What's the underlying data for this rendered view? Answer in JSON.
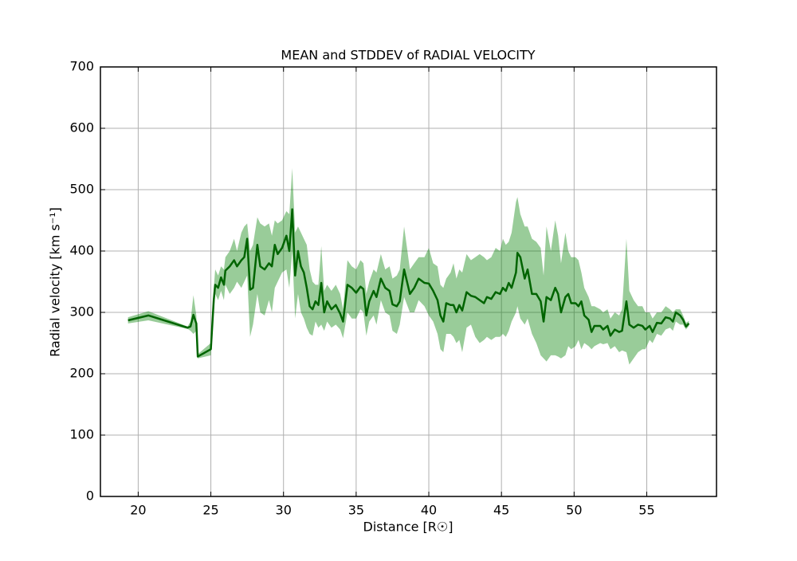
{
  "chart_data": {
    "type": "line-band",
    "title": "MEAN and STDDEV of RADIAL VELOCITY",
    "xlabel": "Distance [R☉]",
    "ylabel": "Radial velocity [km s⁻¹]",
    "x": [
      19.3,
      20.7,
      23.4,
      23.6,
      23.8,
      24.0,
      24.1,
      25.0,
      25.2,
      25.3,
      25.5,
      25.7,
      25.9,
      26.0,
      26.3,
      26.6,
      26.8,
      27.1,
      27.3,
      27.5,
      27.7,
      27.9,
      28.2,
      28.4,
      28.7,
      29.0,
      29.2,
      29.4,
      29.6,
      29.9,
      30.2,
      30.4,
      30.6,
      30.8,
      31.0,
      31.2,
      31.4,
      31.6,
      31.8,
      32.0,
      32.2,
      32.4,
      32.6,
      32.8,
      33.0,
      33.3,
      33.6,
      33.9,
      34.1,
      34.4,
      34.7,
      35.0,
      35.3,
      35.5,
      35.7,
      35.9,
      36.2,
      36.4,
      36.7,
      37.0,
      37.3,
      37.5,
      37.8,
      38.0,
      38.3,
      38.7,
      39.0,
      39.3,
      39.7,
      40.0,
      40.3,
      40.6,
      40.8,
      41.0,
      41.2,
      41.5,
      41.7,
      41.9,
      42.1,
      42.3,
      42.6,
      42.9,
      43.2,
      43.5,
      43.8,
      44.0,
      44.3,
      44.6,
      44.9,
      45.1,
      45.3,
      45.5,
      45.7,
      46.0,
      46.1,
      46.3,
      46.6,
      46.8,
      47.1,
      47.4,
      47.7,
      47.9,
      48.1,
      48.4,
      48.7,
      48.9,
      49.1,
      49.4,
      49.6,
      49.8,
      50.1,
      50.3,
      50.5,
      50.7,
      51.0,
      51.2,
      51.4,
      51.8,
      52.0,
      52.3,
      52.5,
      52.8,
      53.1,
      53.3,
      53.6,
      53.8,
      54.1,
      54.4,
      54.7,
      54.9,
      55.2,
      55.4,
      55.7,
      56.0,
      56.3,
      56.6,
      56.8,
      57.0,
      57.3,
      57.5,
      57.7,
      57.9
    ],
    "values": [
      287,
      295,
      275,
      277,
      296,
      282,
      228,
      240,
      320,
      345,
      340,
      357,
      345,
      368,
      375,
      385,
      375,
      385,
      390,
      420,
      337,
      340,
      410,
      375,
      370,
      380,
      375,
      410,
      395,
      405,
      425,
      400,
      468,
      360,
      400,
      375,
      365,
      340,
      310,
      305,
      318,
      312,
      348,
      300,
      318,
      305,
      312,
      298,
      285,
      345,
      340,
      332,
      342,
      338,
      295,
      318,
      335,
      325,
      355,
      340,
      335,
      313,
      310,
      318,
      370,
      330,
      340,
      355,
      348,
      347,
      335,
      320,
      295,
      285,
      315,
      312,
      312,
      300,
      312,
      303,
      333,
      327,
      325,
      320,
      315,
      325,
      322,
      333,
      330,
      340,
      335,
      348,
      340,
      365,
      397,
      390,
      355,
      370,
      330,
      330,
      318,
      285,
      325,
      320,
      340,
      330,
      300,
      325,
      330,
      315,
      315,
      310,
      318,
      295,
      288,
      268,
      278,
      278,
      272,
      278,
      262,
      272,
      268,
      270,
      318,
      280,
      275,
      280,
      278,
      272,
      278,
      268,
      283,
      282,
      292,
      290,
      285,
      300,
      295,
      288,
      277,
      282
    ],
    "lower": [
      282,
      287,
      273,
      270,
      265,
      270,
      225,
      230,
      300,
      330,
      320,
      335,
      320,
      345,
      330,
      340,
      350,
      340,
      350,
      360,
      260,
      280,
      330,
      300,
      295,
      320,
      300,
      340,
      350,
      365,
      370,
      340,
      400,
      290,
      330,
      300,
      290,
      275,
      265,
      262,
      285,
      275,
      280,
      270,
      285,
      275,
      280,
      272,
      258,
      300,
      290,
      290,
      305,
      300,
      262,
      285,
      295,
      280,
      320,
      300,
      295,
      270,
      265,
      280,
      325,
      300,
      300,
      320,
      310,
      295,
      285,
      265,
      240,
      235,
      265,
      265,
      260,
      250,
      255,
      235,
      275,
      280,
      260,
      250,
      255,
      260,
      255,
      260,
      260,
      265,
      260,
      270,
      285,
      300,
      310,
      290,
      280,
      290,
      265,
      250,
      230,
      225,
      220,
      230,
      230,
      228,
      225,
      230,
      245,
      240,
      245,
      255,
      240,
      250,
      245,
      240,
      245,
      250,
      248,
      250,
      240,
      245,
      235,
      238,
      235,
      215,
      225,
      235,
      240,
      240,
      255,
      250,
      265,
      262,
      272,
      275,
      270,
      285,
      280,
      280,
      272,
      278
    ],
    "upper": [
      292,
      302,
      277,
      285,
      328,
      295,
      232,
      250,
      340,
      370,
      360,
      375,
      370,
      390,
      400,
      420,
      400,
      430,
      440,
      445,
      400,
      410,
      455,
      445,
      440,
      445,
      425,
      450,
      445,
      450,
      465,
      460,
      535,
      430,
      440,
      430,
      420,
      410,
      370,
      350,
      345,
      345,
      408,
      335,
      345,
      335,
      345,
      330,
      305,
      385,
      375,
      370,
      385,
      380,
      330,
      350,
      370,
      365,
      395,
      370,
      375,
      355,
      360,
      370,
      440,
      370,
      380,
      390,
      390,
      405,
      380,
      375,
      345,
      340,
      355,
      365,
      380,
      355,
      370,
      365,
      395,
      385,
      390,
      395,
      390,
      385,
      390,
      405,
      400,
      420,
      410,
      415,
      430,
      480,
      488,
      460,
      440,
      440,
      420,
      415,
      405,
      360,
      440,
      400,
      450,
      425,
      380,
      430,
      400,
      390,
      390,
      385,
      365,
      340,
      325,
      310,
      310,
      305,
      300,
      305,
      290,
      300,
      295,
      305,
      420,
      335,
      320,
      310,
      310,
      300,
      300,
      290,
      300,
      300,
      310,
      305,
      300,
      305,
      305,
      295,
      283,
      286
    ],
    "line_color": "#006400",
    "band_color": "#008000",
    "band_opacity": 0.4,
    "xlim": [
      17.4,
      59.8
    ],
    "ylim": [
      0,
      700
    ],
    "xticks": [
      20,
      25,
      30,
      35,
      40,
      45,
      50,
      55
    ],
    "yticks": [
      0,
      100,
      200,
      300,
      400,
      500,
      600,
      700
    ],
    "grid": true
  }
}
